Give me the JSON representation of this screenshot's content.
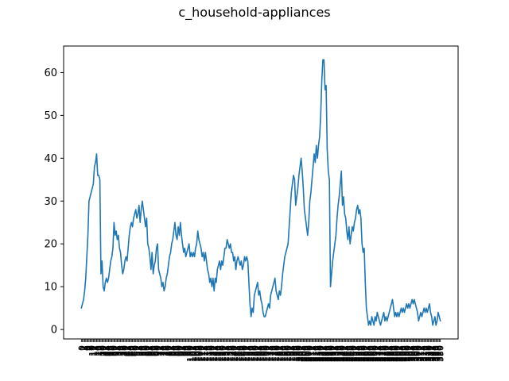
{
  "chart_data": {
    "type": "line",
    "title": "c_household-appliances",
    "xlabel": "",
    "ylabel": "",
    "ylim": [
      -2.2,
      66.2
    ],
    "yticks": [
      0,
      10,
      20,
      30,
      40,
      50,
      60
    ],
    "grid": false,
    "line_color": "#1f77b4",
    "series": [
      {
        "values": [
          5,
          6,
          7,
          9,
          12,
          17,
          22,
          30,
          31,
          32,
          33,
          34,
          38,
          39,
          41,
          36,
          36,
          35,
          13,
          16,
          10,
          9,
          11,
          12,
          11,
          12,
          14,
          16,
          17,
          19,
          25,
          22,
          23,
          21,
          22,
          19,
          18,
          15,
          13,
          14,
          16,
          17,
          16,
          19,
          22,
          24,
          25,
          24,
          26,
          27,
          28,
          26,
          27,
          29,
          25,
          28,
          30,
          28,
          26,
          24,
          26,
          20,
          19,
          17,
          14,
          18,
          13,
          15,
          16,
          19,
          20,
          14,
          13,
          12,
          10,
          11,
          9,
          10,
          12,
          13,
          15,
          17,
          18,
          20,
          21,
          23,
          25,
          22,
          21,
          24,
          22,
          25,
          22,
          20,
          18,
          19,
          17,
          18,
          19,
          20,
          17,
          18,
          17,
          18,
          17,
          19,
          20,
          23,
          21,
          20,
          19,
          17,
          18,
          16,
          18,
          16,
          14,
          13,
          11,
          12,
          10,
          12,
          9,
          12,
          11,
          14,
          15,
          16,
          14,
          16,
          15,
          17,
          19,
          19,
          21,
          20,
          19,
          20,
          18,
          18,
          16,
          17,
          14,
          16,
          17,
          16,
          15,
          16,
          14,
          15,
          17,
          16,
          17,
          16,
          11,
          6,
          3,
          5,
          4,
          8,
          9,
          10,
          11,
          8,
          9,
          7,
          6,
          4,
          3,
          3,
          4,
          5,
          6,
          5,
          8,
          9,
          10,
          11,
          12,
          9,
          8,
          7,
          9,
          8,
          10,
          13,
          15,
          17,
          18,
          19,
          20,
          24,
          28,
          32,
          34,
          36,
          35,
          29,
          31,
          33,
          36,
          38,
          40,
          37,
          33,
          28,
          26,
          24,
          22,
          25,
          30,
          32,
          35,
          38,
          41,
          39,
          43,
          40,
          43,
          45,
          50,
          58,
          63,
          63,
          56,
          57,
          42,
          37,
          35,
          10,
          13,
          16,
          18,
          20,
          22,
          26,
          29,
          31,
          34,
          37,
          29,
          31,
          27,
          26,
          23,
          21,
          24,
          20,
          22,
          24,
          23,
          25,
          26,
          28,
          29,
          27,
          28,
          26,
          20,
          18,
          19,
          11,
          5,
          3,
          1,
          2,
          1,
          3,
          2,
          1,
          3,
          2,
          4,
          3,
          2,
          1,
          2,
          3,
          4,
          2,
          3,
          2,
          3,
          4,
          5,
          6,
          7,
          5,
          3,
          4,
          3,
          4,
          3,
          4,
          5,
          4,
          5,
          4,
          5,
          6,
          5,
          6,
          5,
          6,
          7,
          6,
          7,
          6,
          5,
          4,
          2,
          3,
          4,
          3,
          4,
          5,
          4,
          5,
          4,
          5,
          6,
          4,
          3,
          1,
          2,
          3,
          1,
          2,
          4,
          3,
          2
        ]
      }
    ]
  }
}
